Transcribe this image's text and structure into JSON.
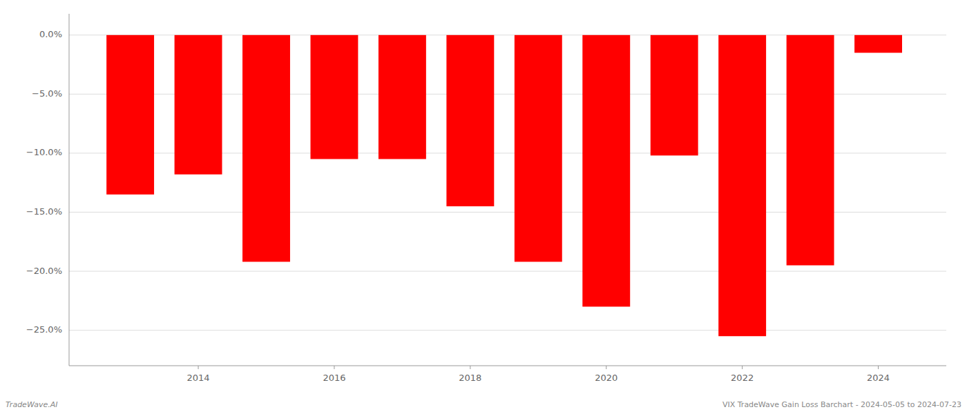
{
  "chart_data": {
    "type": "bar",
    "x": [
      2013,
      2014,
      2015,
      2016,
      2017,
      2018,
      2019,
      2020,
      2021,
      2022,
      2023,
      2024
    ],
    "values": [
      -13.5,
      -11.8,
      -19.2,
      -10.5,
      -10.5,
      -14.5,
      -19.2,
      -23.0,
      -10.2,
      -25.5,
      -19.5,
      -1.5
    ],
    "color": "#ff0000",
    "xlim": [
      2012.1,
      2025.0
    ],
    "xticks": [
      2014,
      2016,
      2018,
      2020,
      2022,
      2024
    ],
    "ylim": [
      -28,
      1.8
    ],
    "yticks": [
      {
        "value": 0.0,
        "label": "0.0%"
      },
      {
        "value": -5.0,
        "label": "−5.0%"
      },
      {
        "value": -10.0,
        "label": "−10.0%"
      },
      {
        "value": -15.0,
        "label": "−15.0%"
      },
      {
        "value": -20.0,
        "label": "−20.0%"
      },
      {
        "value": -25.0,
        "label": "−25.0%"
      }
    ],
    "grid": true,
    "annotations": [
      "TradeWave.AI",
      "VIX TradeWave Gain Loss Barchart - 2024-05-05 to 2024-07-23"
    ]
  }
}
